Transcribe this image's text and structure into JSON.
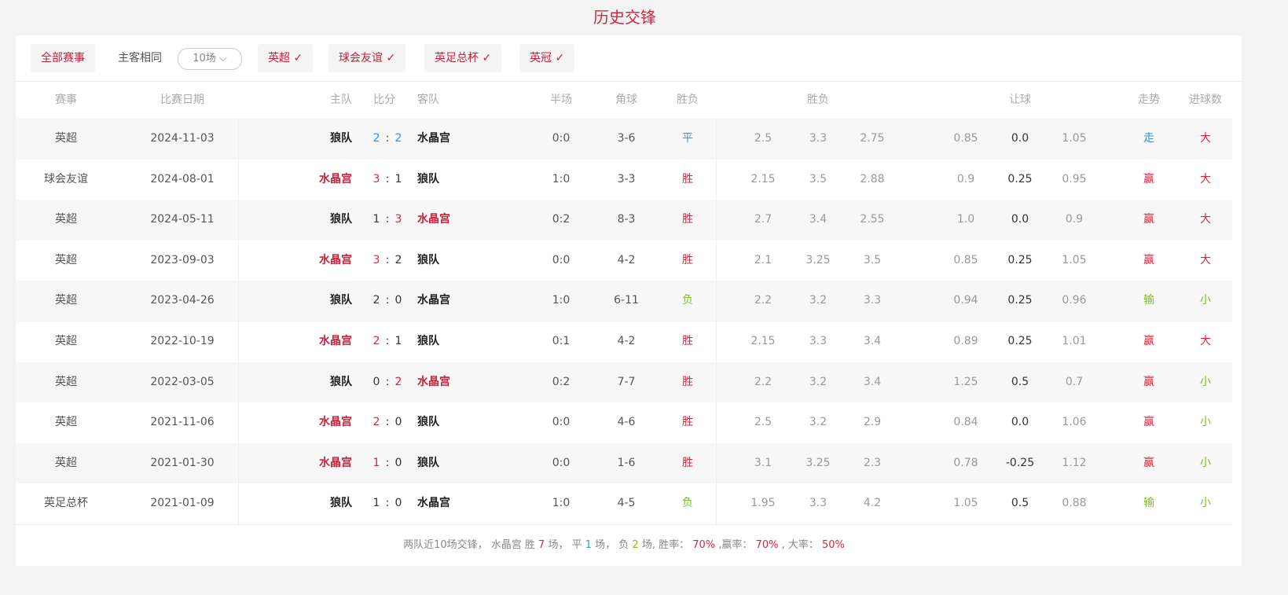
{
  "title": "历史交锋",
  "filters": {
    "all": "全部赛事",
    "same_home_away": "主客相同",
    "count_select": "10场",
    "chips": [
      "英超 ✓",
      "球会友谊 ✓",
      "英足总杯 ✓",
      "英冠 ✓"
    ]
  },
  "headers": {
    "comp": "赛事",
    "date": "比赛日期",
    "home": "主队",
    "score": "比分",
    "away": "客队",
    "half": "半场",
    "corner": "角球",
    "result": "胜负",
    "odds": "胜负",
    "handicap": "让球",
    "trend": "走势",
    "goals": "进球数"
  },
  "colors": {
    "red": "#d7263d",
    "blue": "#3a8ee6",
    "green": "#7cbf1e"
  },
  "rows": [
    {
      "comp": "英超",
      "date": "2024-11-03",
      "home": "狼队",
      "hs": "2",
      "as": "2",
      "away": "水晶宫",
      "half": "0:0",
      "corner": "3-6",
      "result": "平",
      "o1": "2.5",
      "o2": "3.3",
      "o3": "2.75",
      "h1": "0.85",
      "h2": "0.0",
      "h3": "1.05",
      "trend": "走",
      "goals": "大",
      "hl": "none",
      "hc": "blue",
      "ac": "blue",
      "rc": "blue",
      "tc": "blue",
      "gc": "red"
    },
    {
      "comp": "球会友谊",
      "date": "2024-08-01",
      "home": "水晶宫",
      "hs": "3",
      "as": "1",
      "away": "狼队",
      "half": "1:0",
      "corner": "3-3",
      "result": "胜",
      "o1": "2.15",
      "o2": "3.5",
      "o3": "2.88",
      "h1": "0.9",
      "h2": "0.25",
      "h3": "0.95",
      "trend": "赢",
      "goals": "大",
      "hl": "home",
      "hc": "red",
      "ac": "",
      "rc": "red",
      "tc": "red",
      "gc": "red"
    },
    {
      "comp": "英超",
      "date": "2024-05-11",
      "home": "狼队",
      "hs": "1",
      "as": "3",
      "away": "水晶宫",
      "half": "0:2",
      "corner": "8-3",
      "result": "胜",
      "o1": "2.7",
      "o2": "3.4",
      "o3": "2.55",
      "h1": "1.0",
      "h2": "0.0",
      "h3": "0.9",
      "trend": "赢",
      "goals": "大",
      "hl": "away",
      "hc": "",
      "ac": "red",
      "rc": "red",
      "tc": "red",
      "gc": "red"
    },
    {
      "comp": "英超",
      "date": "2023-09-03",
      "home": "水晶宫",
      "hs": "3",
      "as": "2",
      "away": "狼队",
      "half": "0:0",
      "corner": "4-2",
      "result": "胜",
      "o1": "2.1",
      "o2": "3.25",
      "o3": "3.5",
      "h1": "0.85",
      "h2": "0.25",
      "h3": "1.05",
      "trend": "赢",
      "goals": "大",
      "hl": "home",
      "hc": "red",
      "ac": "",
      "rc": "red",
      "tc": "red",
      "gc": "red"
    },
    {
      "comp": "英超",
      "date": "2023-04-26",
      "home": "狼队",
      "hs": "2",
      "as": "0",
      "away": "水晶宫",
      "half": "1:0",
      "corner": "6-11",
      "result": "负",
      "o1": "2.2",
      "o2": "3.2",
      "o3": "3.3",
      "h1": "0.94",
      "h2": "0.25",
      "h3": "0.96",
      "trend": "输",
      "goals": "小",
      "hl": "none",
      "hc": "",
      "ac": "",
      "rc": "green",
      "tc": "green",
      "gc": "green"
    },
    {
      "comp": "英超",
      "date": "2022-10-19",
      "home": "水晶宫",
      "hs": "2",
      "as": "1",
      "away": "狼队",
      "half": "0:1",
      "corner": "4-2",
      "result": "胜",
      "o1": "2.15",
      "o2": "3.3",
      "o3": "3.4",
      "h1": "0.89",
      "h2": "0.25",
      "h3": "1.01",
      "trend": "赢",
      "goals": "大",
      "hl": "home",
      "hc": "red",
      "ac": "",
      "rc": "red",
      "tc": "red",
      "gc": "red"
    },
    {
      "comp": "英超",
      "date": "2022-03-05",
      "home": "狼队",
      "hs": "0",
      "as": "2",
      "away": "水晶宫",
      "half": "0:2",
      "corner": "7-7",
      "result": "胜",
      "o1": "2.2",
      "o2": "3.2",
      "o3": "3.4",
      "h1": "1.25",
      "h2": "0.5",
      "h3": "0.7",
      "trend": "赢",
      "goals": "小",
      "hl": "away",
      "hc": "",
      "ac": "red",
      "rc": "red",
      "tc": "red",
      "gc": "green"
    },
    {
      "comp": "英超",
      "date": "2021-11-06",
      "home": "水晶宫",
      "hs": "2",
      "as": "0",
      "away": "狼队",
      "half": "0:0",
      "corner": "4-6",
      "result": "胜",
      "o1": "2.5",
      "o2": "3.2",
      "o3": "2.9",
      "h1": "0.84",
      "h2": "0.0",
      "h3": "1.06",
      "trend": "赢",
      "goals": "小",
      "hl": "home",
      "hc": "red",
      "ac": "",
      "rc": "red",
      "tc": "red",
      "gc": "green"
    },
    {
      "comp": "英超",
      "date": "2021-01-30",
      "home": "水晶宫",
      "hs": "1",
      "as": "0",
      "away": "狼队",
      "half": "0:0",
      "corner": "1-6",
      "result": "胜",
      "o1": "3.1",
      "o2": "3.25",
      "o3": "2.3",
      "h1": "0.78",
      "h2": "-0.25",
      "h3": "1.12",
      "trend": "赢",
      "goals": "小",
      "hl": "home",
      "hc": "red",
      "ac": "",
      "rc": "red",
      "tc": "red",
      "gc": "green"
    },
    {
      "comp": "英足总杯",
      "date": "2021-01-09",
      "home": "狼队",
      "hs": "1",
      "as": "0",
      "away": "水晶宫",
      "half": "1:0",
      "corner": "4-5",
      "result": "负",
      "o1": "1.95",
      "o2": "3.3",
      "o3": "4.2",
      "h1": "1.05",
      "h2": "0.5",
      "h3": "0.88",
      "trend": "输",
      "goals": "小",
      "hl": "none",
      "hc": "",
      "ac": "",
      "rc": "green",
      "tc": "green",
      "gc": "green"
    }
  ],
  "footer": {
    "p1": "两队近10场交锋，  水晶宫 胜 ",
    "win": "7",
    "p2": " 场，  平 ",
    "draw": "1",
    "p3": " 场，  负 ",
    "loss": "2",
    "p4": " 场, 胜率：  ",
    "win_rate": "70%",
    "p5": " ,赢率：  ",
    "cover_rate": "70%",
    "p6": " , 大率：  ",
    "over_rate": "50%"
  }
}
